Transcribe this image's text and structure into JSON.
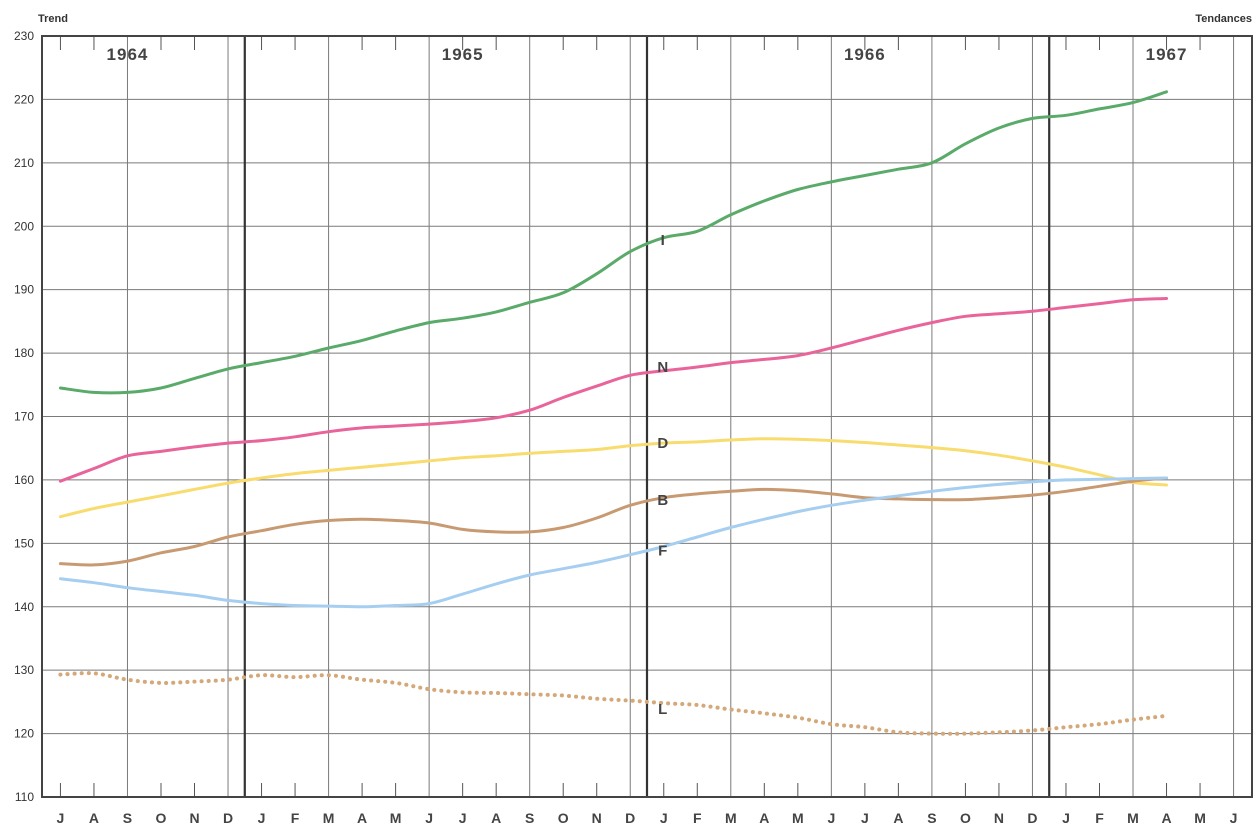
{
  "chart_data": {
    "type": "line",
    "ylabel_left": "Trend",
    "ylabel_right": "Tendances",
    "ylim": [
      110,
      230
    ],
    "y_ticks": [
      110,
      120,
      130,
      140,
      150,
      160,
      170,
      180,
      190,
      200,
      210,
      220,
      230
    ],
    "x_labels": [
      "J",
      "A",
      "S",
      "O",
      "N",
      "D",
      "J",
      "F",
      "M",
      "A",
      "M",
      "J",
      "J",
      "A",
      "S",
      "O",
      "N",
      "D",
      "J",
      "F",
      "M",
      "A",
      "M",
      "J",
      "J",
      "A",
      "S",
      "O",
      "N",
      "D",
      "J",
      "F",
      "M",
      "A",
      "M",
      "J"
    ],
    "years": [
      {
        "label": "1964",
        "month_index": 2
      },
      {
        "label": "1965",
        "month_index": 12
      },
      {
        "label": "1966",
        "month_index": 24
      },
      {
        "label": "1967",
        "month_index": 33
      }
    ],
    "year_dividers": [
      5.5,
      17.5,
      29.5
    ],
    "grid": true,
    "series": [
      {
        "name": "I",
        "color": "#5aaa6a",
        "label_month": 18,
        "label_value": 198,
        "x": [
          0,
          1,
          2,
          3,
          4,
          5,
          6,
          7,
          8,
          9,
          10,
          11,
          12,
          13,
          14,
          15,
          16,
          17,
          18,
          19,
          20,
          21,
          22,
          23,
          24,
          25,
          26,
          27,
          28,
          29,
          30,
          31,
          32,
          33
        ],
        "values": [
          174.5,
          173.8,
          173.8,
          174.5,
          176,
          177.5,
          178.5,
          179.5,
          180.8,
          182,
          183.5,
          184.8,
          185.5,
          186.5,
          188,
          189.5,
          192.5,
          196,
          198.2,
          199.2,
          201.8,
          204,
          205.8,
          207,
          208,
          209,
          210,
          213,
          215.5,
          217,
          217.5,
          218.5,
          219.5,
          221.2
        ]
      },
      {
        "name": "N",
        "color": "#e8649a",
        "label_month": 18,
        "label_value": 178,
        "x": [
          0,
          1,
          2,
          3,
          4,
          5,
          6,
          7,
          8,
          9,
          10,
          11,
          12,
          13,
          14,
          15,
          16,
          17,
          18,
          19,
          20,
          21,
          22,
          23,
          24,
          25,
          26,
          27,
          28,
          29,
          30,
          31,
          32,
          33
        ],
        "values": [
          159.8,
          161.8,
          163.8,
          164.5,
          165.2,
          165.8,
          166.2,
          166.8,
          167.6,
          168.2,
          168.5,
          168.8,
          169.2,
          169.8,
          171,
          173,
          174.8,
          176.5,
          177.2,
          177.8,
          178.5,
          179,
          179.6,
          180.8,
          182.2,
          183.6,
          184.8,
          185.8,
          186.2,
          186.6,
          187.2,
          187.8,
          188.4,
          188.6
        ]
      },
      {
        "name": "D",
        "color": "#f8dc6e",
        "label_month": 18,
        "label_value": 166,
        "x": [
          0,
          1,
          2,
          3,
          4,
          5,
          6,
          7,
          8,
          9,
          10,
          11,
          12,
          13,
          14,
          15,
          16,
          17,
          18,
          19,
          20,
          21,
          22,
          23,
          24,
          25,
          26,
          27,
          28,
          29,
          30,
          31,
          32,
          33
        ],
        "values": [
          154.2,
          155.5,
          156.5,
          157.5,
          158.5,
          159.5,
          160.3,
          161,
          161.5,
          162,
          162.5,
          163,
          163.5,
          163.8,
          164.2,
          164.5,
          164.8,
          165.4,
          165.8,
          166,
          166.3,
          166.5,
          166.4,
          166.2,
          165.9,
          165.5,
          165.1,
          164.6,
          163.9,
          163,
          162,
          160.8,
          159.6,
          159.2
        ]
      },
      {
        "name": "B",
        "color": "#c89a72",
        "label_month": 18,
        "label_value": 157,
        "x": [
          0,
          1,
          2,
          3,
          4,
          5,
          6,
          7,
          8,
          9,
          10,
          11,
          12,
          13,
          14,
          15,
          16,
          17,
          18,
          19,
          20,
          21,
          22,
          23,
          24,
          25,
          26,
          27,
          28,
          29,
          30,
          31,
          32,
          33
        ],
        "values": [
          146.8,
          146.6,
          147.2,
          148.5,
          149.5,
          151,
          152,
          153,
          153.6,
          153.8,
          153.6,
          153.2,
          152.2,
          151.8,
          151.8,
          152.5,
          154,
          156,
          157.2,
          157.8,
          158.2,
          158.5,
          158.3,
          157.8,
          157.2,
          157,
          156.9,
          156.9,
          157.2,
          157.6,
          158.2,
          159,
          159.8,
          160.3
        ]
      },
      {
        "name": "F",
        "color": "#a6cef0",
        "label_month": 18,
        "label_value": 149,
        "x": [
          0,
          1,
          2,
          3,
          4,
          5,
          6,
          7,
          8,
          9,
          10,
          11,
          12,
          13,
          14,
          15,
          16,
          17,
          18,
          19,
          20,
          21,
          22,
          23,
          24,
          25,
          26,
          27,
          28,
          29,
          30,
          31,
          32,
          33
        ],
        "values": [
          144.4,
          143.8,
          143,
          142.4,
          141.8,
          141,
          140.5,
          140.2,
          140.1,
          140,
          140.2,
          140.5,
          142,
          143.6,
          145,
          146,
          147,
          148.2,
          149.5,
          151,
          152.5,
          153.8,
          155,
          156,
          156.8,
          157.5,
          158.2,
          158.8,
          159.3,
          159.7,
          160,
          160.1,
          160.2,
          160.3
        ]
      },
      {
        "name": "L",
        "color": "#d4a878",
        "dotted": true,
        "label_month": 18,
        "label_value": 124,
        "x": [
          0,
          1,
          2,
          3,
          4,
          5,
          6,
          7,
          8,
          9,
          10,
          11,
          12,
          13,
          14,
          15,
          16,
          17,
          18,
          19,
          20,
          21,
          22,
          23,
          24,
          25,
          26,
          27,
          28,
          29,
          30,
          31,
          32,
          33
        ],
        "values": [
          129.3,
          129.5,
          128.5,
          128,
          128.2,
          128.5,
          129.2,
          128.9,
          129.2,
          128.5,
          128,
          127,
          126.5,
          126.4,
          126.2,
          126,
          125.5,
          125.2,
          124.8,
          124.5,
          123.8,
          123.2,
          122.5,
          121.5,
          121,
          120.2,
          120,
          120,
          120.2,
          120.5,
          121,
          121.5,
          122.2,
          122.8
        ]
      }
    ]
  }
}
